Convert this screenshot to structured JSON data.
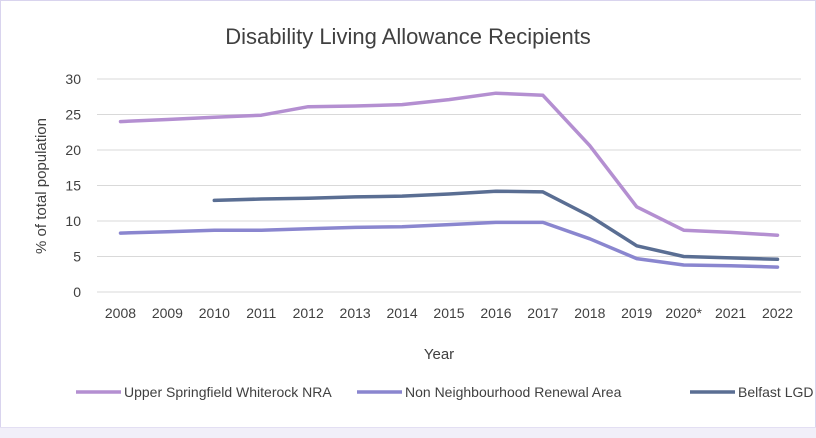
{
  "chart_data": {
    "type": "line",
    "title": "Disability Living Allowance Recipients",
    "xlabel": "Year",
    "ylabel": "% of total population",
    "ylim": [
      0,
      30
    ],
    "yticks": [
      0,
      5,
      10,
      15,
      20,
      25,
      30
    ],
    "grid": true,
    "legend_position": "bottom",
    "categories": [
      "2008",
      "2009",
      "2010",
      "2011",
      "2012",
      "2013",
      "2014",
      "2015",
      "2016",
      "2017",
      "2018",
      "2019",
      "2020*",
      "2021",
      "2022"
    ],
    "series": [
      {
        "name": "Upper Springfield Whiterock NRA",
        "color": "#b48fd1",
        "values": [
          24.0,
          24.3,
          24.6,
          24.9,
          26.1,
          26.2,
          26.4,
          27.1,
          28.0,
          27.7,
          20.6,
          12.0,
          8.7,
          8.4,
          8.0
        ]
      },
      {
        "name": "Non Neighbourhood Renewal Area",
        "color": "#8a86cf",
        "values": [
          8.3,
          8.5,
          8.7,
          8.7,
          8.9,
          9.1,
          9.2,
          9.5,
          9.8,
          9.8,
          7.5,
          4.7,
          3.8,
          3.7,
          3.5
        ]
      },
      {
        "name": "Belfast LGD",
        "color": "#5a6e93",
        "values": [
          null,
          null,
          12.9,
          13.1,
          13.2,
          13.4,
          13.5,
          13.8,
          14.2,
          14.1,
          10.7,
          6.5,
          5.0,
          4.8,
          4.6
        ]
      }
    ]
  }
}
